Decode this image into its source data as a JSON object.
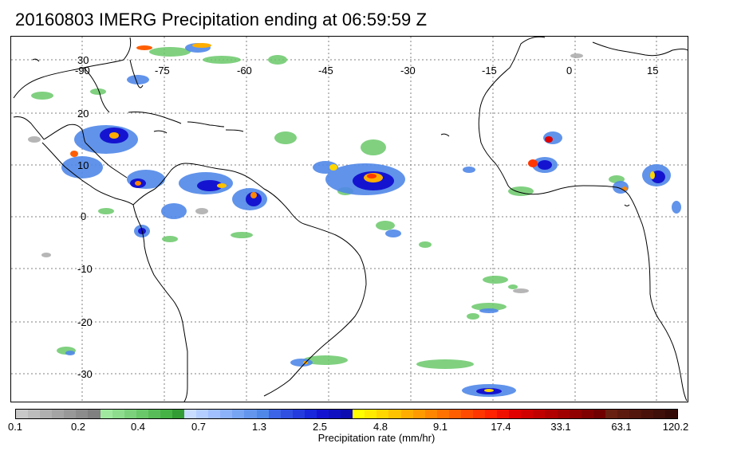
{
  "title": "20160803 IMERG Precipitation ending at 06:59:59 Z",
  "map": {
    "lon_labels": [
      "-90",
      "-75",
      "-60",
      "-45",
      "-30",
      "-15",
      "0",
      "15"
    ],
    "lat_labels": [
      "30",
      "20",
      "10",
      "0",
      "-10",
      "-20",
      "-30"
    ]
  },
  "colorbar": {
    "title": "Precipitation rate (mm/hr)",
    "tick_labels": [
      "0.1",
      "0.2",
      "0.4",
      "0.7",
      "1.3",
      "2.5",
      "4.8",
      "9.1",
      "17.4",
      "33.1",
      "63.1",
      "120.2"
    ],
    "colors": [
      "#c8c8c8",
      "#bcbcbc",
      "#b0b0b0",
      "#a4a4a4",
      "#989898",
      "#8c8c8c",
      "#808080",
      "#a0e8a0",
      "#8edd8e",
      "#7cd27c",
      "#6ac86a",
      "#58bd58",
      "#46b246",
      "#349c34",
      "#c8dcff",
      "#b4ceff",
      "#a0c0ff",
      "#8cb2fa",
      "#78a4f4",
      "#6496ee",
      "#5088e8",
      "#3c64e6",
      "#3050e2",
      "#243cde",
      "#1828da",
      "#1414d0",
      "#1010c0",
      "#0c0cb0",
      "#ffff00",
      "#ffea00",
      "#ffd600",
      "#ffc200",
      "#ffae00",
      "#ff9a00",
      "#ff8600",
      "#ff7200",
      "#ff5e00",
      "#ff4a00",
      "#ff3600",
      "#ff2200",
      "#f01000",
      "#e00000",
      "#d00000",
      "#c00000",
      "#b00000",
      "#a00000",
      "#900000",
      "#800000",
      "#700000",
      "#682010",
      "#5c1a0e",
      "#52160c",
      "#48120a",
      "#3e0e08",
      "#340a06"
    ]
  }
}
